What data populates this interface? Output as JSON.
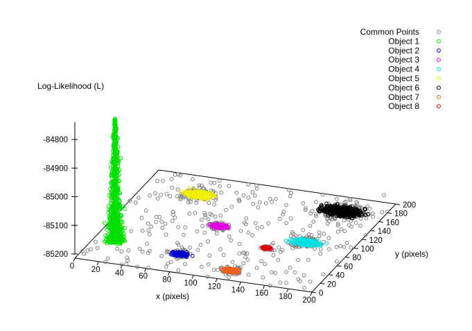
{
  "chart_data": {
    "type": "scatter",
    "dimensions": 3,
    "zlabel": "Log-Likelihood (L)",
    "xlabel": "x (pixels)",
    "ylabel": "y (pixels)",
    "xlim": [
      0,
      200
    ],
    "ylim": [
      0,
      200
    ],
    "zlim": [
      -85200,
      -84750
    ],
    "x_ticks": [
      "0",
      "20",
      "40",
      "60",
      "80",
      "100",
      "120",
      "140",
      "160",
      "180",
      "200"
    ],
    "y_ticks": [
      "0",
      "20",
      "40",
      "60",
      "80",
      "100",
      "120",
      "140",
      "160",
      "180",
      "200"
    ],
    "z_ticks": [
      "-84800",
      "-84900",
      "-85000",
      "-85100",
      "-85200"
    ],
    "legend_position": "top-right",
    "series": [
      {
        "name": "Common Points",
        "color": "#808080",
        "marker": "circle",
        "count": 260,
        "x_range": [
          0,
          200
        ],
        "y_range": [
          0,
          200
        ],
        "z": -85200
      },
      {
        "name": "Object 1",
        "color": "#00e000",
        "marker": "circle",
        "center": [
          18,
          45
        ],
        "spread": 3,
        "z_peak": -84770,
        "z_base": -85200,
        "shape": "spike"
      },
      {
        "name": "Object 2",
        "color": "#0000d0",
        "marker": "circle",
        "center": [
          75,
          38
        ],
        "spread": 3,
        "z": -85200
      },
      {
        "name": "Object 3",
        "color": "#e000e0",
        "marker": "circle",
        "center": [
          85,
          105
        ],
        "spread": 3,
        "z": -85200
      },
      {
        "name": "Object 4",
        "color": "#00e0e0",
        "marker": "circle",
        "center": [
          160,
          98
        ],
        "spread": 5,
        "z": -85200
      },
      {
        "name": "Object 5",
        "color": "#f0f000",
        "marker": "circle",
        "center": [
          47,
          162
        ],
        "spread": 5,
        "z": -85200
      },
      {
        "name": "Object 6",
        "color": "#000000",
        "marker": "circle",
        "center": [
          165,
          170
        ],
        "spread": 8,
        "z": -85200
      },
      {
        "name": "Object 7",
        "color": "#f06020",
        "marker": "circle",
        "center": [
          125,
          20
        ],
        "spread": 3,
        "z": -85200
      },
      {
        "name": "Object 8",
        "color": "#e00000",
        "marker": "circle",
        "center": [
          135,
          75
        ],
        "spread": 1.5,
        "z": -85200
      }
    ]
  }
}
